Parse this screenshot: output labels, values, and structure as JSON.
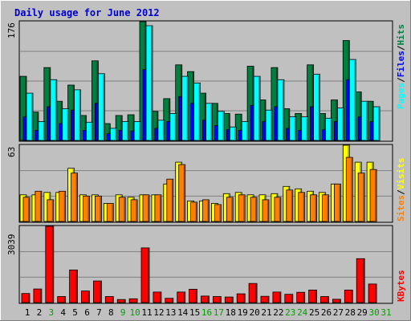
{
  "chart_data": [
    {
      "type": "bar",
      "panel": "hits-files-pages",
      "title": "Daily usage for June 2012",
      "categories": [
        "1",
        "2",
        "3",
        "4",
        "5",
        "6",
        "7",
        "8",
        "9",
        "10",
        "11",
        "12",
        "13",
        "14",
        "15",
        "16",
        "17",
        "18",
        "19",
        "20",
        "21",
        "22",
        "23",
        "24",
        "25",
        "26",
        "27",
        "28",
        "29",
        "30",
        "31"
      ],
      "ymax_label": "176",
      "ylim": [
        0,
        176
      ],
      "series": [
        {
          "name": "Hits",
          "color": "#008040",
          "values": [
            95,
            42,
            108,
            58,
            82,
            37,
            118,
            25,
            37,
            38,
            176,
            43,
            62,
            112,
            102,
            70,
            55,
            40,
            39,
            110,
            60,
            108,
            47,
            40,
            112,
            40,
            60,
            148,
            72,
            58,
            0
          ]
        },
        {
          "name": "Files",
          "color": "#0000ff",
          "values": [
            35,
            15,
            50,
            25,
            45,
            15,
            55,
            10,
            15,
            14,
            105,
            18,
            28,
            65,
            55,
            30,
            22,
            16,
            15,
            52,
            28,
            50,
            18,
            15,
            50,
            16,
            28,
            90,
            35,
            28,
            0
          ]
        },
        {
          "name": "Pages",
          "color": "#00ffff",
          "values": [
            70,
            28,
            90,
            47,
            75,
            27,
            99,
            18,
            28,
            28,
            170,
            30,
            40,
            95,
            85,
            55,
            43,
            20,
            28,
            95,
            45,
            90,
            35,
            35,
            98,
            33,
            48,
            120,
            58,
            50,
            0
          ]
        }
      ]
    },
    {
      "type": "bar",
      "panel": "visits-sites",
      "categories": [
        "1",
        "2",
        "3",
        "4",
        "5",
        "6",
        "7",
        "8",
        "9",
        "10",
        "11",
        "12",
        "13",
        "14",
        "15",
        "16",
        "17",
        "18",
        "19",
        "20",
        "21",
        "22",
        "23",
        "24",
        "25",
        "26",
        "27",
        "28",
        "29",
        "30",
        "31"
      ],
      "ymax_label": "63",
      "ylim": [
        0,
        63
      ],
      "series": [
        {
          "name": "Visits",
          "color": "#ffff00",
          "values": [
            22,
            22,
            24,
            24,
            44,
            22,
            22,
            15,
            22,
            20,
            22,
            22,
            31,
            49,
            17,
            17,
            15,
            23,
            24,
            22,
            22,
            23,
            29,
            27,
            25,
            24,
            31,
            63,
            49,
            49,
            0
          ]
        },
        {
          "name": "Sites",
          "color": "#ff8000",
          "values": [
            20,
            25,
            18,
            25,
            40,
            21,
            21,
            15,
            20,
            18,
            22,
            22,
            35,
            47,
            16,
            18,
            14,
            20,
            22,
            20,
            18,
            20,
            26,
            24,
            22,
            22,
            31,
            53,
            40,
            43,
            0
          ]
        }
      ]
    },
    {
      "type": "bar",
      "panel": "kbytes",
      "categories": [
        "1",
        "2",
        "3",
        "4",
        "5",
        "6",
        "7",
        "8",
        "9",
        "10",
        "11",
        "12",
        "13",
        "14",
        "15",
        "16",
        "17",
        "18",
        "19",
        "20",
        "21",
        "22",
        "23",
        "24",
        "25",
        "26",
        "27",
        "28",
        "29",
        "30",
        "31"
      ],
      "ymax_label": "3039",
      "ylim": [
        0,
        3039
      ],
      "series": [
        {
          "name": "KBytes",
          "color": "#ff0000",
          "values": [
            360,
            540,
            3039,
            240,
            1300,
            460,
            860,
            240,
            120,
            150,
            2180,
            420,
            170,
            420,
            530,
            260,
            240,
            220,
            350,
            760,
            250,
            420,
            330,
            410,
            500,
            240,
            130,
            500,
            1750,
            740,
            0
          ]
        }
      ]
    }
  ],
  "colors": {
    "background": "#c0c0c0",
    "title": "#0000cc",
    "day_weekday": "#000000",
    "day_weekend": "#00a000"
  },
  "weekend_days": [
    "3",
    "9",
    "10",
    "16",
    "17",
    "23",
    "24",
    "30",
    "31"
  ],
  "side_labels": {
    "top": [
      {
        "text": "Pages",
        "color": "#00ffff"
      },
      {
        "text": "/",
        "color": "#000000"
      },
      {
        "text": "Files",
        "color": "#0000ff"
      },
      {
        "text": "/",
        "color": "#000000"
      },
      {
        "text": "Hits",
        "color": "#008040"
      }
    ],
    "middle": [
      {
        "text": "Sites",
        "color": "#ff8000"
      },
      {
        "text": "/",
        "color": "#000000"
      },
      {
        "text": "Visits",
        "color": "#ffff00"
      }
    ],
    "bottom": [
      {
        "text": "KBytes",
        "color": "#ff0000"
      }
    ]
  }
}
